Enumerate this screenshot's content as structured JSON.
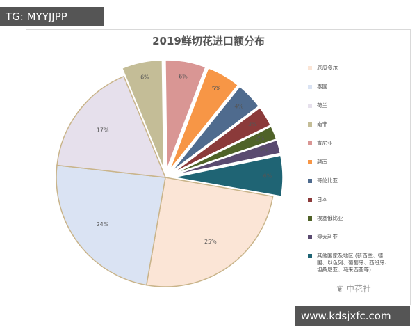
{
  "chart_data": {
    "type": "pie",
    "title": "2019鲜切花进口额分布",
    "categories": [
      "厄瓜多尔",
      "泰国",
      "荷兰",
      "南非",
      "肯尼亚",
      "越南",
      "哥伦比亚",
      "日本",
      "埃塞俄比亚",
      "澳大利亚",
      "其他国家及地区 (新西兰、德国、以色列、葡萄牙、西班牙、坦桑尼亚、马来西亚等)"
    ],
    "values": [
      25,
      24,
      17,
      6,
      6,
      5,
      4,
      3,
      2,
      2,
      6
    ],
    "value_labels": [
      "25%",
      "24%",
      "17%",
      "6%",
      "6%",
      "5%",
      "4%",
      "3%",
      "2%",
      "2%",
      "6%"
    ],
    "colors": [
      "#fbe5d6",
      "#dae3f3",
      "#e6e0ec",
      "#c4bd97",
      "#d99694",
      "#f79646",
      "#4f6b8e",
      "#8b3a3a",
      "#4f6228",
      "#5a4a70",
      "#1f6474"
    ]
  },
  "watermarks": {
    "top_left": "TG: MYYJJPP",
    "bottom_right": "www.kdsjxfc.com",
    "logo": "中花社"
  }
}
